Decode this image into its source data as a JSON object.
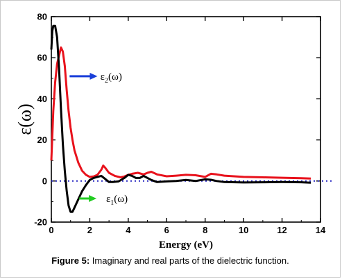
{
  "chart_data": {
    "type": "line",
    "xlabel": "Energy (eV)",
    "ylabel": "ε(ω)",
    "xlim": [
      0,
      14
    ],
    "ylim": [
      -20,
      80
    ],
    "xticks": [
      0,
      2,
      4,
      6,
      8,
      10,
      12,
      14
    ],
    "yticks": [
      -20,
      0,
      20,
      40,
      60,
      80
    ],
    "grid": false,
    "zero_line": {
      "y": 0,
      "color": "#1f1fbf",
      "style": "dotted"
    },
    "series": [
      {
        "name": "ε2(ω)",
        "color": "#e8121c",
        "x": [
          0.0,
          0.1,
          0.2,
          0.3,
          0.4,
          0.5,
          0.6,
          0.7,
          0.8,
          0.9,
          1.0,
          1.1,
          1.2,
          1.4,
          1.6,
          1.8,
          2.0,
          2.2,
          2.4,
          2.6,
          2.7,
          2.8,
          3.0,
          3.3,
          3.6,
          3.8,
          4.0,
          4.2,
          4.5,
          4.8,
          5.0,
          5.2,
          5.5,
          6.0,
          6.5,
          7.0,
          7.5,
          8.0,
          8.3,
          8.6,
          9.0,
          9.5,
          10.0,
          11.0,
          12.0,
          13.0,
          13.5
        ],
        "y": [
          10,
          34,
          48,
          57,
          61,
          65,
          63,
          56,
          44,
          34,
          26,
          20,
          15,
          9,
          5,
          3,
          2,
          2.2,
          3,
          5.5,
          7.5,
          6.5,
          4,
          2.5,
          1.8,
          2.2,
          3,
          3.5,
          4,
          3.2,
          4,
          4.5,
          3.2,
          2.3,
          2.6,
          3,
          2.8,
          2,
          3.5,
          3.2,
          2.6,
          2.3,
          2,
          1.8,
          1.6,
          1.4,
          1.2
        ]
      },
      {
        "name": "ε1(ω)",
        "color": "#000000",
        "x": [
          0.0,
          0.05,
          0.1,
          0.2,
          0.3,
          0.4,
          0.5,
          0.6,
          0.7,
          0.8,
          0.9,
          1.0,
          1.1,
          1.2,
          1.4,
          1.6,
          1.8,
          2.0,
          2.2,
          2.4,
          2.6,
          2.8,
          3.0,
          3.2,
          3.5,
          3.8,
          4.0,
          4.2,
          4.4,
          4.6,
          4.8,
          5.0,
          5.2,
          5.5,
          6.0,
          6.5,
          7.0,
          7.5,
          8.0,
          8.3,
          8.6,
          9.0,
          10.0,
          11.0,
          12.0,
          13.0,
          13.5
        ],
        "y": [
          64,
          73,
          75.5,
          75.5,
          70,
          55,
          35,
          18,
          5,
          -5,
          -12,
          -15,
          -15,
          -13,
          -9,
          -5,
          -2,
          0.5,
          1.5,
          2,
          2.5,
          1,
          -0.5,
          -0.5,
          -0.2,
          1.5,
          3,
          2.5,
          1.5,
          1.5,
          2.5,
          1.5,
          0.5,
          -0.5,
          -0.2,
          0,
          0.5,
          0,
          0.8,
          0.6,
          0,
          -0.5,
          -0.7,
          -0.6,
          -0.5,
          -0.6,
          -0.8
        ]
      }
    ],
    "annotations": [
      {
        "text": "ε",
        "sub": "2",
        "tail": "(ω)",
        "arrow_color": "#1a3fd9",
        "series": "ε2(ω)"
      },
      {
        "text": "ε",
        "sub": "1",
        "tail": "(ω)",
        "arrow_color": "#22cc22",
        "series": "ε1(ω)"
      }
    ]
  },
  "caption": {
    "label": "Figure 5:",
    "text": " Imaginary and real parts of the dielectric function."
  }
}
